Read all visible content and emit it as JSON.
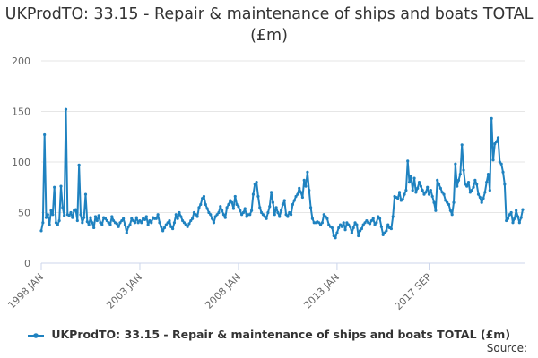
{
  "chart_data": {
    "type": "line",
    "title": "UKProdTO: 33.15 - Repair & maintenance of ships and boats TOTAL (£m)",
    "xlabel": "",
    "ylabel": "",
    "ylim": [
      0,
      200
    ],
    "yticks": [
      "0",
      "50",
      "100",
      "150",
      "200"
    ],
    "xticks": [
      "1998 JAN",
      "2003 JAN",
      "2008 JAN",
      "2013 JAN",
      "2017 SEP"
    ],
    "grid": true,
    "legend_position": "bottom",
    "color": "#1f82c0",
    "series": [
      {
        "name": "UKProdTO: 33.15 - Repair & maintenance of ships and boats TOTAL (£m)",
        "start": "1998-01",
        "end": "2017-09",
        "values": [
          32,
          40,
          127,
          45,
          48,
          38,
          52,
          48,
          75,
          40,
          38,
          42,
          76,
          55,
          47,
          152,
          48,
          47,
          50,
          45,
          52,
          53,
          42,
          97,
          48,
          40,
          45,
          68,
          41,
          38,
          45,
          40,
          35,
          46,
          42,
          47,
          40,
          38,
          45,
          44,
          42,
          40,
          38,
          46,
          42,
          40,
          39,
          36,
          40,
          42,
          44,
          38,
          30,
          36,
          38,
          44,
          42,
          40,
          45,
          40,
          42,
          40,
          44,
          43,
          46,
          38,
          42,
          40,
          45,
          44,
          44,
          48,
          40,
          36,
          32,
          35,
          38,
          40,
          42,
          36,
          34,
          40,
          48,
          44,
          50,
          46,
          42,
          40,
          38,
          36,
          39,
          42,
          44,
          50,
          48,
          46,
          55,
          58,
          64,
          66,
          58,
          54,
          50,
          48,
          44,
          40,
          46,
          48,
          50,
          56,
          52,
          48,
          45,
          55,
          58,
          62,
          60,
          54,
          66,
          58,
          56,
          52,
          48,
          50,
          54,
          46,
          48,
          48,
          52,
          68,
          78,
          80,
          66,
          55,
          50,
          48,
          46,
          44,
          50,
          56,
          70,
          60,
          48,
          55,
          50,
          46,
          52,
          58,
          62,
          48,
          46,
          50,
          48,
          58,
          62,
          66,
          68,
          74,
          70,
          65,
          82,
          76,
          90,
          72,
          55,
          44,
          40,
          40,
          41,
          40,
          38,
          40,
          48,
          46,
          44,
          38,
          36,
          35,
          27,
          25,
          30,
          35,
          38,
          36,
          40,
          33,
          40,
          38,
          36,
          30,
          35,
          40,
          38,
          27,
          32,
          34,
          38,
          40,
          42,
          40,
          39,
          42,
          44,
          38,
          40,
          46,
          44,
          36,
          28,
          30,
          32,
          38,
          35,
          34,
          46,
          66,
          65,
          64,
          70,
          62,
          63,
          68,
          72,
          101,
          80,
          86,
          72,
          84,
          70,
          74,
          80,
          76,
          72,
          68,
          70,
          75,
          68,
          72,
          66,
          60,
          52,
          82,
          78,
          74,
          70,
          68,
          62,
          60,
          58,
          52,
          48,
          60,
          98,
          76,
          82,
          88,
          117,
          92,
          78,
          76,
          80,
          70,
          72,
          75,
          82,
          78,
          68,
          65,
          60,
          64,
          70,
          80,
          88,
          72,
          143,
          102,
          118,
          120,
          124,
          100,
          98,
          90,
          78,
          42,
          44,
          48,
          50,
          40,
          44,
          52,
          46,
          40,
          45,
          53
        ]
      }
    ]
  },
  "legend": {
    "label": "UKProdTO: 33.15 - Repair & maintenance of ships and boats TOTAL (£m)"
  },
  "source": {
    "label": "Source:"
  }
}
